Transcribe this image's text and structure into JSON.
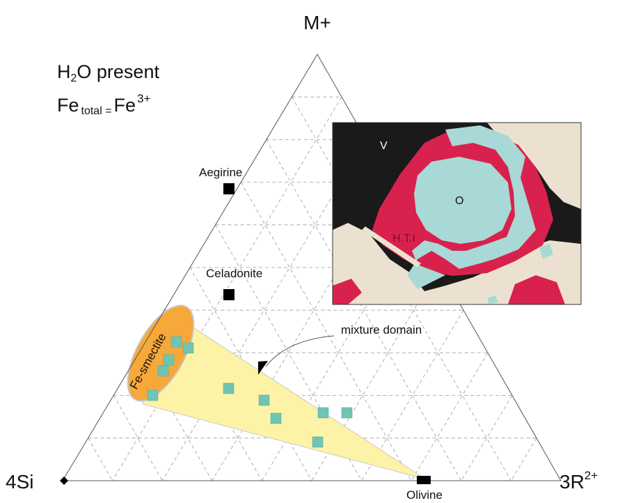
{
  "corners": {
    "top": "M+",
    "left": "4Si",
    "right": "3R",
    "right_superscript": "2+"
  },
  "conditions": {
    "line1_main": "H",
    "line1_sub": "2",
    "line1_rest": "O present",
    "line2_main": "Fe",
    "line2_sub": "total =",
    "line2_fe": "Fe",
    "line2_superscript": "3+"
  },
  "minerals": {
    "aegirine": "Aegirine",
    "celadonite": "Celadonite",
    "olivine": "Olivine",
    "fe_smectite": "Fe-smectite"
  },
  "annotation": "mixture domain",
  "inset": {
    "label_v": "V",
    "label_o": "O",
    "label_hti": "H.T.I"
  },
  "colors": {
    "smectite_fill": "#f6a83a",
    "domain_fill": "#fdf3a6",
    "sample_fill": "#6fc5b2",
    "inset_black": "#1a1a1a",
    "inset_beige": "#ece1d0",
    "inset_red": "#d9214e",
    "inset_cyan": "#a8d9d6"
  }
}
